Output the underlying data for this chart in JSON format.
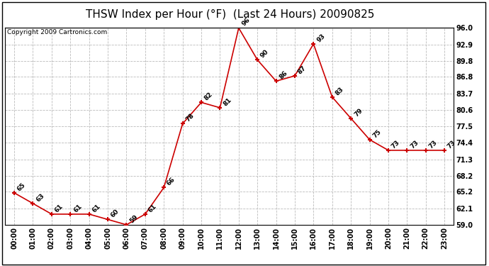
{
  "title": "THSW Index per Hour (°F)  (Last 24 Hours) 20090825",
  "copyright_text": "Copyright 2009 Cartronics.com",
  "hours": [
    "00:00",
    "01:00",
    "02:00",
    "03:00",
    "04:00",
    "05:00",
    "06:00",
    "07:00",
    "08:00",
    "09:00",
    "10:00",
    "11:00",
    "12:00",
    "13:00",
    "14:00",
    "15:00",
    "16:00",
    "17:00",
    "18:00",
    "19:00",
    "20:00",
    "21:00",
    "22:00",
    "23:00"
  ],
  "values": [
    65,
    63,
    61,
    61,
    61,
    60,
    59,
    61,
    66,
    78,
    82,
    81,
    96,
    90,
    86,
    87,
    93,
    83,
    79,
    75,
    73,
    73,
    73,
    73
  ],
  "ylim": [
    59.0,
    96.0
  ],
  "yticks": [
    59.0,
    62.1,
    65.2,
    68.2,
    71.3,
    74.4,
    77.5,
    80.6,
    83.7,
    86.8,
    89.8,
    92.9,
    96.0
  ],
  "line_color": "#cc0000",
  "marker_color": "#cc0000",
  "grid_color": "#bbbbbb",
  "background_color": "#ffffff",
  "title_fontsize": 11,
  "label_fontsize": 7,
  "annotation_fontsize": 6.5,
  "copyright_fontsize": 6.5
}
